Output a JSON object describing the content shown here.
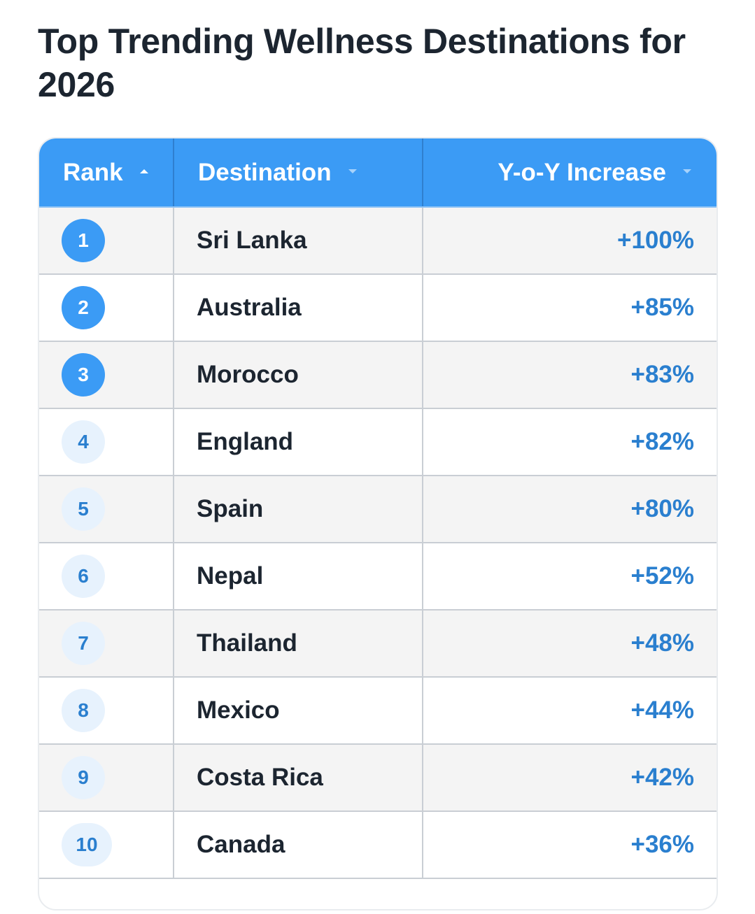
{
  "title": "Top Trending Wellness Destinations for 2026",
  "table": {
    "headers": {
      "rank": "Rank",
      "destination": "Destination",
      "increase": "Y-o-Y Increase"
    },
    "rows": [
      {
        "rank": "1",
        "destination": "Sri Lanka",
        "increase": "+100%"
      },
      {
        "rank": "2",
        "destination": "Australia",
        "increase": "+85%"
      },
      {
        "rank": "3",
        "destination": "Morocco",
        "increase": "+83%"
      },
      {
        "rank": "4",
        "destination": "England",
        "increase": "+82%"
      },
      {
        "rank": "5",
        "destination": "Spain",
        "increase": "+80%"
      },
      {
        "rank": "6",
        "destination": "Nepal",
        "increase": "+52%"
      },
      {
        "rank": "7",
        "destination": "Thailand",
        "increase": "+48%"
      },
      {
        "rank": "8",
        "destination": "Mexico",
        "increase": "+44%"
      },
      {
        "rank": "9",
        "destination": "Costa Rica",
        "increase": "+42%"
      },
      {
        "rank": "10",
        "destination": "Canada",
        "increase": "+36%"
      }
    ]
  },
  "icons": {
    "rank_sort": "sort-ascending-icon",
    "destination_sort": "sort-descending-icon",
    "increase_sort": "sort-descending-icon"
  },
  "colors": {
    "header_bg": "#3b9bf5",
    "accent_text": "#2a7fcf",
    "top_rank_badge": "#3b9bf5",
    "other_rank_badge": "#e7f2fd"
  }
}
